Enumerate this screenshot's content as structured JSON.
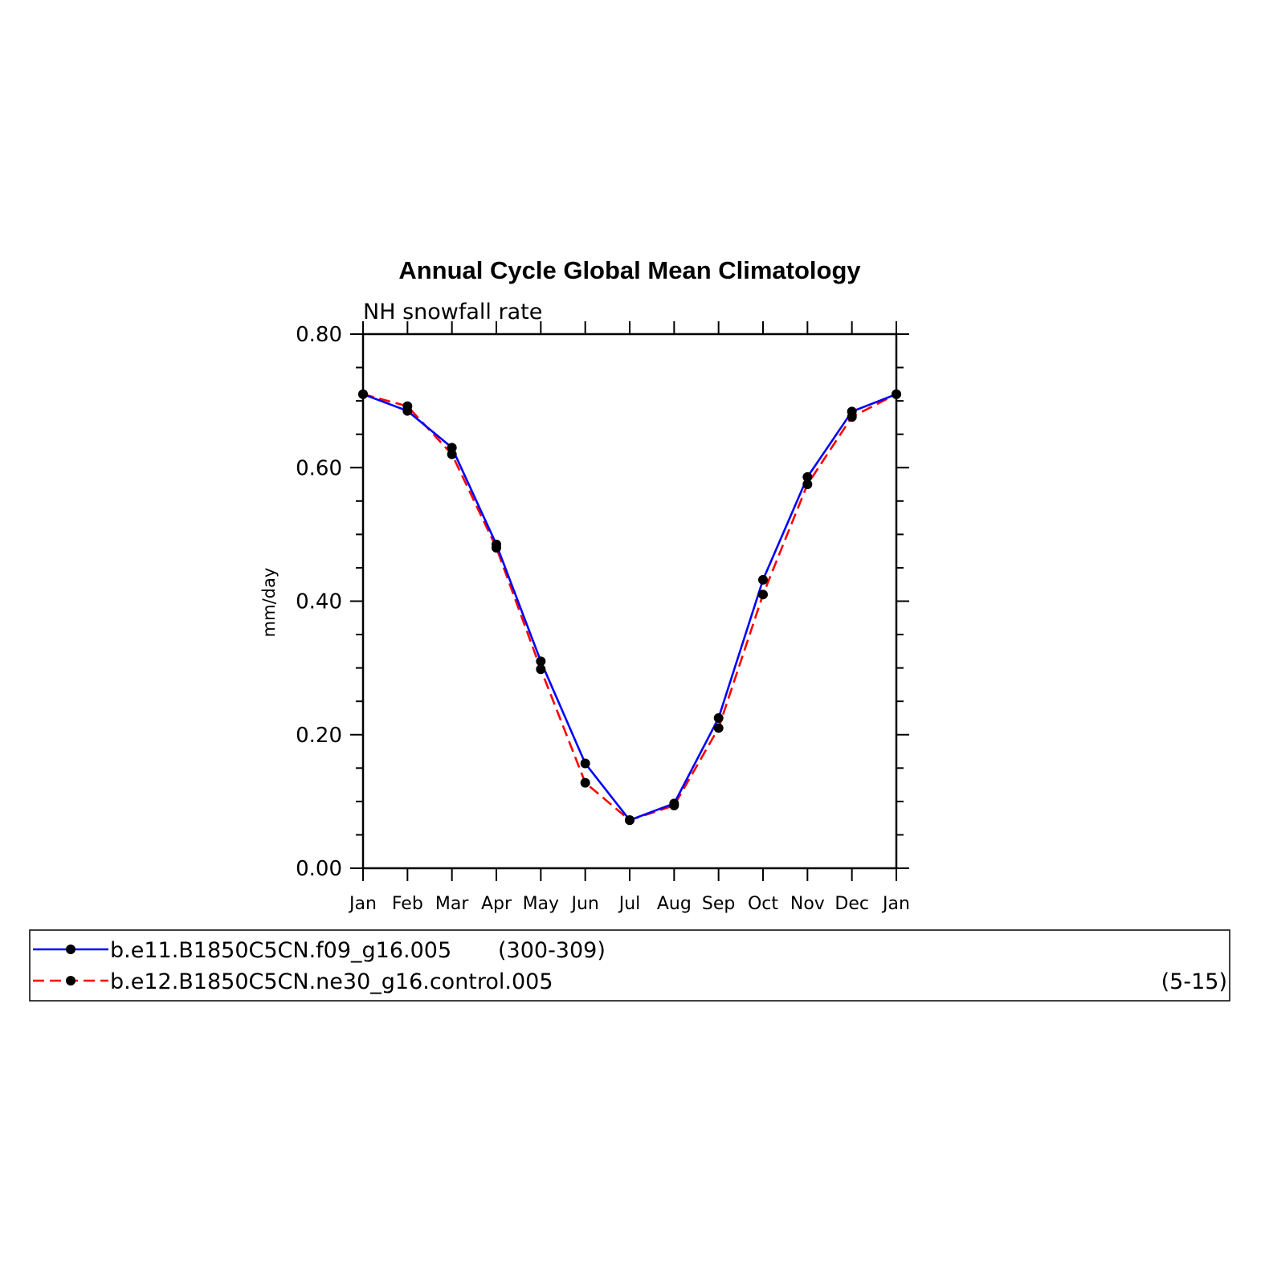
{
  "chart_data": {
    "type": "line",
    "title": "Annual Cycle Global Mean Climatology",
    "subtitle": "NH snowfall rate",
    "ylabel": "mm/day",
    "xlabel": "",
    "ylim": [
      0,
      0.8
    ],
    "y_ticks": [
      "0.00",
      "0.20",
      "0.40",
      "0.60",
      "0.80"
    ],
    "categories": [
      "Jan",
      "Feb",
      "Mar",
      "Apr",
      "May",
      "Jun",
      "Jul",
      "Aug",
      "Sep",
      "Oct",
      "Nov",
      "Dec",
      "Jan"
    ],
    "grid": false,
    "legend_placement": "bottom",
    "series": [
      {
        "name": "b.e11.B1850C5CN.f09_g16.005",
        "years": "(300-309)",
        "color": "#0000ff",
        "dash": "solid",
        "values": [
          0.71,
          0.685,
          0.63,
          0.485,
          0.31,
          0.157,
          0.072,
          0.097,
          0.225,
          0.432,
          0.586,
          0.684,
          0.71
        ]
      },
      {
        "name": "b.e12.B1850C5CN.ne30_g16.control.005",
        "years": "(5-15)",
        "color": "#ff0000",
        "dash": "dashed",
        "values": [
          0.71,
          0.692,
          0.62,
          0.48,
          0.298,
          0.128,
          0.072,
          0.094,
          0.21,
          0.41,
          0.575,
          0.676,
          0.71
        ]
      }
    ]
  }
}
